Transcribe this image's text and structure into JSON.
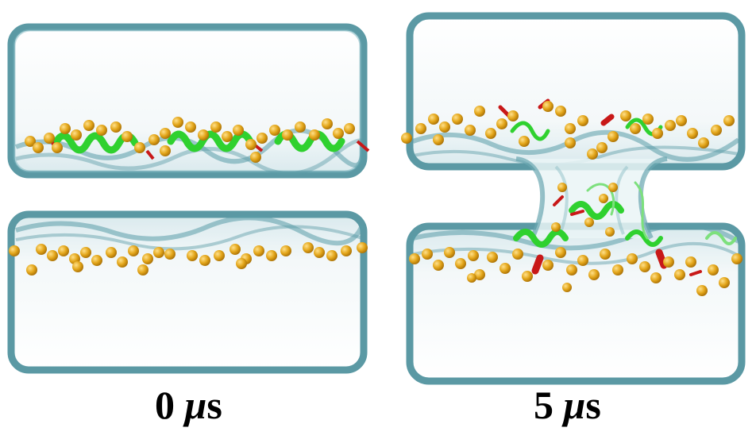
{
  "panels": [
    {
      "time_value": "0",
      "time_symbol": "μ",
      "time_unit": "s"
    },
    {
      "time_value": "5",
      "time_symbol": "μ",
      "time_unit": "s"
    }
  ],
  "colors": {
    "membrane_edge": "#4a8f9b",
    "membrane_fill": "#e9f3f5",
    "lipid_headgroup": "#e3a61a",
    "helix_green": "#2fd12f",
    "helix_red": "#c81818"
  }
}
